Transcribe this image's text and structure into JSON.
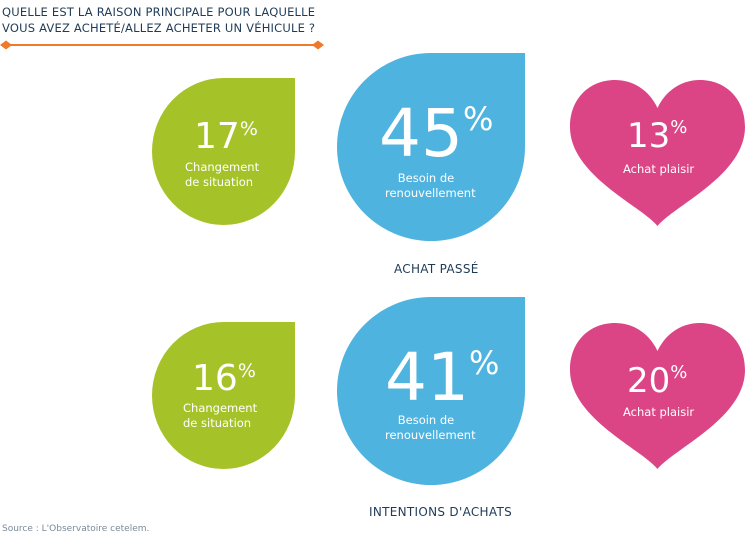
{
  "header": {
    "question_line1": "QUELLE EST LA RAISON PRINCIPALE POUR LAQUELLE",
    "question_line2": "VOUS AVEZ ACHETÉ/ALLEZ ACHETER UN VÉHICULE ?"
  },
  "colors": {
    "green": "#a6c229",
    "blue": "#4fb3e0",
    "pink": "#dc4585",
    "orange_rule": "#ee7a2a",
    "text": "#1f3b57"
  },
  "percent_sign": "%",
  "footer": {
    "source": "Source : L'Observatoire cetelem."
  },
  "chart_data": [
    {
      "type": "bubble",
      "title": "ACHAT PASSÉ",
      "categories": [
        "Changement de situation",
        "Besoin de renouvellement",
        "Achat plaisir"
      ],
      "values": [
        17,
        45,
        13
      ],
      "unit": "%",
      "items": [
        {
          "value": "17",
          "label_line1": "Changement",
          "label_line2": "de situation"
        },
        {
          "value": "45",
          "label_line1": "Besoin de",
          "label_line2": "renouvellement"
        },
        {
          "value": "13",
          "label_line1": "Achat plaisir",
          "label_line2": ""
        }
      ]
    },
    {
      "type": "bubble",
      "title": "INTENTIONS D'ACHATS",
      "categories": [
        "Changement de situation",
        "Besoin de renouvellement",
        "Achat plaisir"
      ],
      "values": [
        16,
        41,
        20
      ],
      "unit": "%",
      "items": [
        {
          "value": "16",
          "label_line1": "Changement",
          "label_line2": "de situation"
        },
        {
          "value": "41",
          "label_line1": "Besoin de",
          "label_line2": "renouvellement"
        },
        {
          "value": "20",
          "label_line1": "Achat plaisir",
          "label_line2": ""
        }
      ]
    }
  ]
}
